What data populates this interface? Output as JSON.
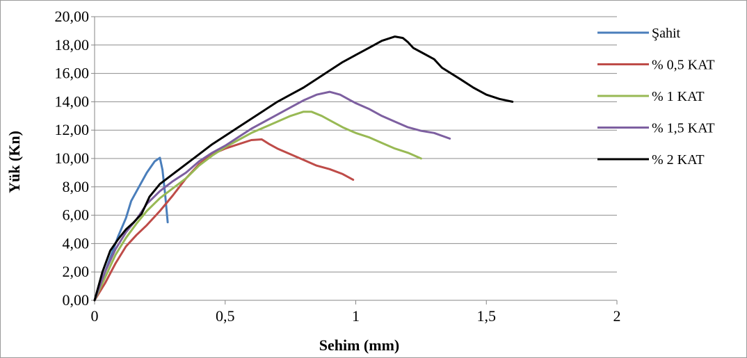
{
  "chart_data": {
    "type": "line",
    "title": "",
    "xlabel": "Sehim (mm)",
    "ylabel": "Yük (Kn)",
    "xlim": [
      0,
      2
    ],
    "ylim": [
      0,
      20
    ],
    "x_ticks": [
      0,
      0.5,
      1,
      1.5,
      2
    ],
    "x_tick_labels": [
      "0",
      "0,5",
      "1",
      "1,5",
      "2"
    ],
    "y_ticks": [
      0,
      2,
      4,
      6,
      8,
      10,
      12,
      14,
      16,
      18,
      20
    ],
    "y_tick_labels": [
      "0,00",
      "2,00",
      "4,00",
      "6,00",
      "8,00",
      "10,00",
      "12,00",
      "14,00",
      "16,00",
      "18,00",
      "20,00"
    ],
    "grid": "horizontal",
    "legend_position": "right",
    "series": [
      {
        "name": "Şahit",
        "color": "#4a7ebb",
        "points": [
          [
            0,
            0
          ],
          [
            0.03,
            1.5
          ],
          [
            0.06,
            3.0
          ],
          [
            0.09,
            4.5
          ],
          [
            0.12,
            5.8
          ],
          [
            0.14,
            7.0
          ],
          [
            0.17,
            8.0
          ],
          [
            0.2,
            9.0
          ],
          [
            0.23,
            9.8
          ],
          [
            0.25,
            10.05
          ],
          [
            0.26,
            9.2
          ],
          [
            0.27,
            7.5
          ],
          [
            0.28,
            5.5
          ]
        ]
      },
      {
        "name": "% 0,5 KAT",
        "color": "#be4b48",
        "points": [
          [
            0,
            0
          ],
          [
            0.04,
            1.2
          ],
          [
            0.08,
            2.6
          ],
          [
            0.12,
            3.8
          ],
          [
            0.16,
            4.6
          ],
          [
            0.2,
            5.3
          ],
          [
            0.25,
            6.3
          ],
          [
            0.3,
            7.4
          ],
          [
            0.35,
            8.6
          ],
          [
            0.4,
            9.6
          ],
          [
            0.45,
            10.3
          ],
          [
            0.5,
            10.7
          ],
          [
            0.55,
            11.0
          ],
          [
            0.6,
            11.3
          ],
          [
            0.64,
            11.35
          ],
          [
            0.67,
            11.0
          ],
          [
            0.7,
            10.7
          ],
          [
            0.75,
            10.3
          ],
          [
            0.8,
            9.9
          ],
          [
            0.85,
            9.5
          ],
          [
            0.9,
            9.25
          ],
          [
            0.95,
            8.9
          ],
          [
            0.99,
            8.5
          ]
        ]
      },
      {
        "name": "% 1 KAT",
        "color": "#98b954",
        "points": [
          [
            0,
            0
          ],
          [
            0.04,
            1.6
          ],
          [
            0.08,
            3.2
          ],
          [
            0.12,
            4.4
          ],
          [
            0.16,
            5.4
          ],
          [
            0.2,
            6.3
          ],
          [
            0.25,
            7.2
          ],
          [
            0.3,
            7.9
          ],
          [
            0.35,
            8.6
          ],
          [
            0.4,
            9.5
          ],
          [
            0.45,
            10.2
          ],
          [
            0.5,
            10.8
          ],
          [
            0.55,
            11.3
          ],
          [
            0.6,
            11.8
          ],
          [
            0.65,
            12.2
          ],
          [
            0.7,
            12.6
          ],
          [
            0.75,
            13.0
          ],
          [
            0.8,
            13.3
          ],
          [
            0.83,
            13.3
          ],
          [
            0.87,
            13.0
          ],
          [
            0.9,
            12.7
          ],
          [
            0.95,
            12.2
          ],
          [
            1.0,
            11.8
          ],
          [
            1.05,
            11.5
          ],
          [
            1.1,
            11.1
          ],
          [
            1.15,
            10.7
          ],
          [
            1.2,
            10.4
          ],
          [
            1.25,
            10.0
          ]
        ]
      },
      {
        "name": "% 1,5 KAT",
        "color": "#7d5fa0",
        "points": [
          [
            0,
            0
          ],
          [
            0.04,
            2.0
          ],
          [
            0.08,
            3.6
          ],
          [
            0.12,
            4.8
          ],
          [
            0.16,
            5.7
          ],
          [
            0.2,
            6.8
          ],
          [
            0.25,
            7.7
          ],
          [
            0.3,
            8.4
          ],
          [
            0.35,
            9.0
          ],
          [
            0.4,
            9.8
          ],
          [
            0.45,
            10.4
          ],
          [
            0.5,
            10.9
          ],
          [
            0.55,
            11.5
          ],
          [
            0.6,
            12.1
          ],
          [
            0.65,
            12.6
          ],
          [
            0.7,
            13.1
          ],
          [
            0.75,
            13.6
          ],
          [
            0.8,
            14.1
          ],
          [
            0.85,
            14.5
          ],
          [
            0.9,
            14.7
          ],
          [
            0.94,
            14.5
          ],
          [
            0.98,
            14.1
          ],
          [
            1.0,
            13.9
          ],
          [
            1.05,
            13.5
          ],
          [
            1.1,
            13.0
          ],
          [
            1.15,
            12.6
          ],
          [
            1.2,
            12.2
          ],
          [
            1.25,
            11.95
          ],
          [
            1.3,
            11.8
          ],
          [
            1.36,
            11.4
          ]
        ]
      },
      {
        "name": "% 2 KAT",
        "color": "#000000",
        "points": [
          [
            0,
            0
          ],
          [
            0.03,
            2.0
          ],
          [
            0.06,
            3.5
          ],
          [
            0.09,
            4.3
          ],
          [
            0.12,
            5.0
          ],
          [
            0.15,
            5.5
          ],
          [
            0.18,
            6.1
          ],
          [
            0.21,
            7.3
          ],
          [
            0.25,
            8.2
          ],
          [
            0.3,
            8.9
          ],
          [
            0.35,
            9.6
          ],
          [
            0.4,
            10.3
          ],
          [
            0.45,
            11.0
          ],
          [
            0.5,
            11.6
          ],
          [
            0.55,
            12.2
          ],
          [
            0.6,
            12.8
          ],
          [
            0.65,
            13.4
          ],
          [
            0.7,
            14.0
          ],
          [
            0.75,
            14.5
          ],
          [
            0.8,
            15.0
          ],
          [
            0.85,
            15.6
          ],
          [
            0.9,
            16.2
          ],
          [
            0.95,
            16.8
          ],
          [
            1.0,
            17.3
          ],
          [
            1.05,
            17.8
          ],
          [
            1.1,
            18.3
          ],
          [
            1.15,
            18.6
          ],
          [
            1.18,
            18.5
          ],
          [
            1.2,
            18.2
          ],
          [
            1.22,
            17.8
          ],
          [
            1.25,
            17.5
          ],
          [
            1.3,
            17.0
          ],
          [
            1.33,
            16.4
          ],
          [
            1.4,
            15.6
          ],
          [
            1.45,
            15.0
          ],
          [
            1.5,
            14.5
          ],
          [
            1.55,
            14.2
          ],
          [
            1.6,
            14.0
          ]
        ]
      }
    ]
  }
}
